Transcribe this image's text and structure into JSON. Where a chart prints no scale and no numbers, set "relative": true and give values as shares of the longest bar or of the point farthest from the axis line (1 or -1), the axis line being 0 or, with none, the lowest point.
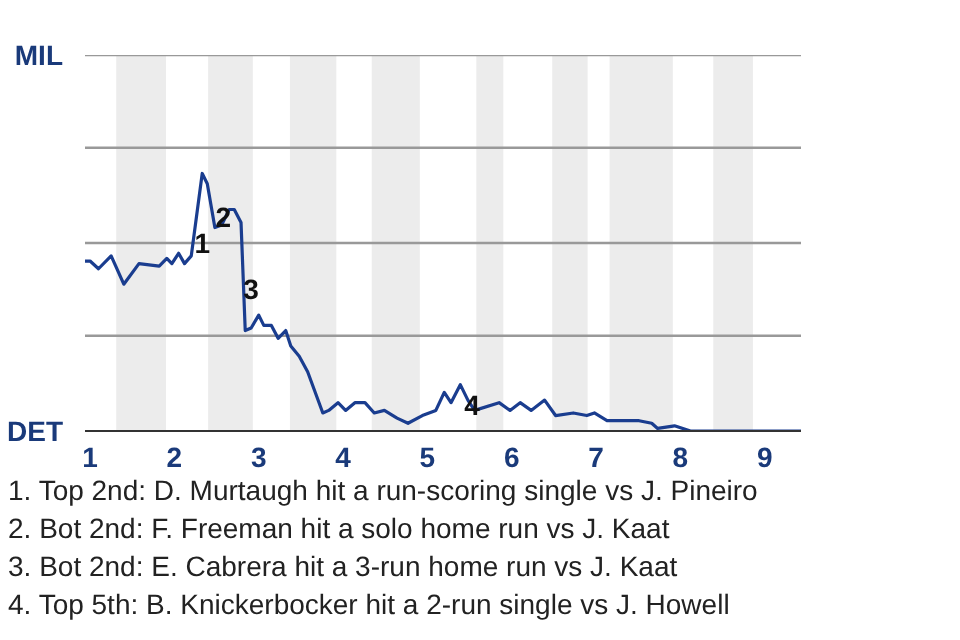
{
  "chart_data": {
    "type": "line",
    "relative": true,
    "x": [
      0.94,
      1.0,
      1.1,
      1.25,
      1.4,
      1.58,
      1.82,
      1.91,
      1.97,
      2.05,
      2.12,
      2.2,
      2.33,
      2.39,
      2.48,
      2.56,
      2.65,
      2.71,
      2.79,
      2.84,
      2.91,
      3.0,
      3.06,
      3.15,
      3.23,
      3.32,
      3.38,
      3.48,
      3.58,
      3.76,
      3.83,
      3.94,
      4.03,
      4.14,
      4.26,
      4.37,
      4.49,
      4.64,
      4.77,
      4.94,
      5.1,
      5.2,
      5.28,
      5.39,
      5.48,
      5.56,
      5.85,
      5.98,
      6.1,
      6.23,
      6.39,
      6.52,
      6.73,
      6.89,
      6.98,
      7.13,
      7.28,
      7.51,
      7.66,
      7.73,
      7.93,
      8.12,
      9.43
    ],
    "series": [
      {
        "color": "#1a3d8f",
        "values": [
          0.66,
          0.66,
          0.63,
          0.68,
          0.57,
          0.65,
          0.64,
          0.67,
          0.65,
          0.69,
          0.65,
          0.68,
          1.0,
          0.96,
          0.79,
          0.8,
          0.86,
          0.86,
          0.81,
          0.39,
          0.4,
          0.45,
          0.41,
          0.41,
          0.36,
          0.39,
          0.33,
          0.29,
          0.23,
          0.07,
          0.08,
          0.11,
          0.08,
          0.11,
          0.11,
          0.07,
          0.08,
          0.05,
          0.03,
          0.06,
          0.08,
          0.15,
          0.11,
          0.18,
          0.12,
          0.08,
          0.11,
          0.08,
          0.11,
          0.08,
          0.12,
          0.06,
          0.07,
          0.06,
          0.07,
          0.04,
          0.04,
          0.04,
          0.03,
          0.01,
          0.02,
          0.0,
          0.0
        ]
      }
    ],
    "xlim": [
      0.94,
      9.43
    ],
    "xticks": [
      1,
      2,
      3,
      4,
      5,
      6,
      7,
      8,
      9
    ],
    "marker": "none",
    "line_style": "solid",
    "ref_lines": [
      {
        "axis": "y",
        "value": 0.37,
        "color": "#999999"
      },
      {
        "axis": "y",
        "value": 0.73,
        "color": "#999999"
      },
      {
        "axis": "y",
        "value": 1.1,
        "color": "#999999"
      },
      {
        "axis": "y",
        "value": 1.46,
        "color": "#999999"
      }
    ],
    "bands": [
      {
        "axis": "x",
        "from": 1.31,
        "to": 1.9,
        "color": "#ececec"
      },
      {
        "axis": "x",
        "from": 2.4,
        "to": 2.93,
        "color": "#ececec"
      },
      {
        "axis": "x",
        "from": 3.37,
        "to": 3.92,
        "color": "#ececec"
      },
      {
        "axis": "x",
        "from": 4.34,
        "to": 4.91,
        "color": "#ececec"
      },
      {
        "axis": "x",
        "from": 5.58,
        "to": 5.9,
        "color": "#ececec"
      },
      {
        "axis": "x",
        "from": 6.48,
        "to": 6.9,
        "color": "#ececec"
      },
      {
        "axis": "x",
        "from": 7.16,
        "to": 7.91,
        "color": "#ececec"
      },
      {
        "axis": "x",
        "from": 8.39,
        "to": 8.86,
        "color": "#ececec"
      }
    ],
    "annotations": [
      "MIL",
      "DET",
      {
        "text": "1",
        "x": 2.33,
        "y": 0.73
      },
      {
        "text": "2",
        "x": 2.58,
        "y": 0.83
      },
      {
        "text": "3",
        "x": 2.91,
        "y": 0.55
      },
      {
        "text": "4",
        "x": 5.53,
        "y": 0.1
      },
      "1. Top 2nd: D. Murtaugh hit a run-scoring single vs J. Pineiro",
      "2. Bot 2nd: F. Freeman hit a solo home run vs J. Kaat",
      "3. Bot 2nd: E. Cabrera hit a 3-run home run vs J. Kaat",
      "4. Top 5th: B. Knickerbocker hit a 2-run single vs J. Howell"
    ]
  }
}
